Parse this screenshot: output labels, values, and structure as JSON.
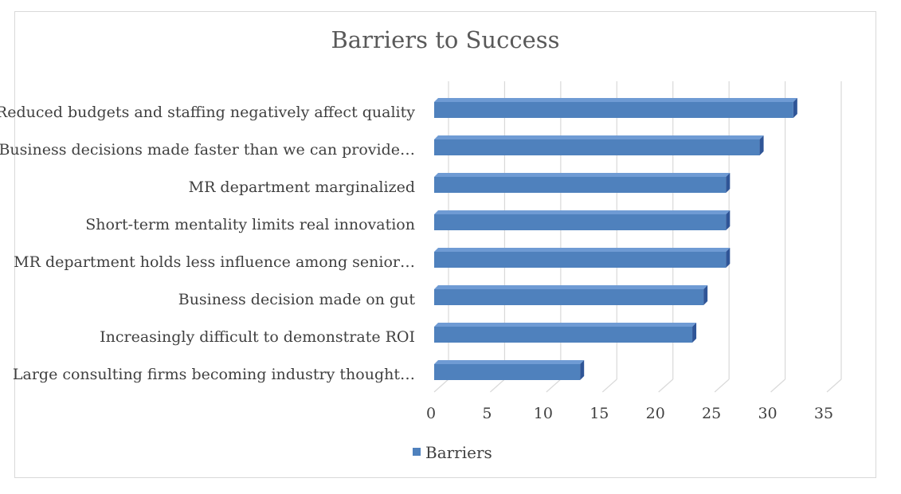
{
  "chart_data": {
    "type": "bar",
    "orientation": "horizontal",
    "three_d": true,
    "title": "Barriers to Success",
    "xlabel": "",
    "ylabel": "",
    "categories": [
      "Reduced budgets and staffing negatively affect quality",
      "Business decisions made faster than we can provide…",
      "MR department marginalized",
      "Short-term mentality limits real innovation",
      "MR department holds less influence among senior…",
      "Business decision made on gut",
      "Increasingly difficult to demonstrate ROI",
      "Large consulting firms becoming industry thought…"
    ],
    "series": [
      {
        "name": "Barriers",
        "values": [
          33,
          30,
          27,
          27,
          27,
          25,
          24,
          14
        ]
      }
    ],
    "xlim": [
      0,
      35
    ],
    "ticks": [
      "0",
      "5",
      "10",
      "15",
      "20",
      "25",
      "30",
      "35"
    ],
    "grid": true,
    "legend": "bottom",
    "colors": {
      "bar_front": "#4f81bd",
      "bar_top": "#6f9bd4",
      "bar_side": "#2f5597",
      "grid": "#d9d9d9",
      "text": "#404040",
      "title": "#595959"
    }
  }
}
